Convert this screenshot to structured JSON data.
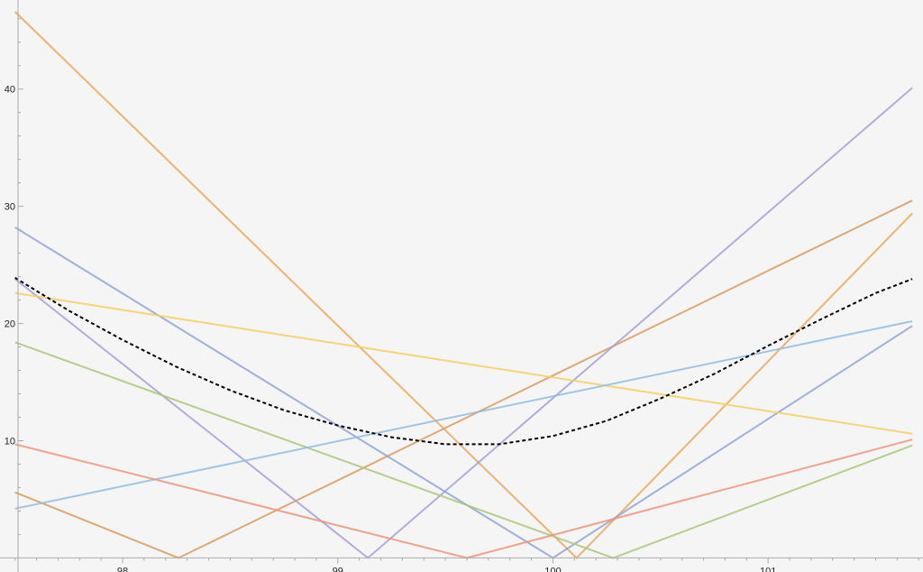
{
  "chart_data": {
    "type": "line",
    "title": "",
    "xlabel": "",
    "ylabel": "",
    "xlim": [
      97.43,
      101.72
    ],
    "ylim": [
      -1.2,
      47.6
    ],
    "x_ticks": [
      {
        "value": 98,
        "label": "98"
      },
      {
        "value": 99,
        "label": "99"
      },
      {
        "value": 100,
        "label": "100"
      },
      {
        "value": 101,
        "label": "101"
      }
    ],
    "y_ticks": [
      {
        "value": 10,
        "label": "10"
      },
      {
        "value": 20,
        "label": "20"
      },
      {
        "value": 30,
        "label": "30"
      },
      {
        "value": 40,
        "label": "40"
      }
    ],
    "grid": false,
    "series": [
      {
        "color": "#e8a85a",
        "style": "solid",
        "points": [
          [
            97.5,
            46.6
          ],
          [
            100.11,
            0
          ],
          [
            101.67,
            29.4
          ]
        ]
      },
      {
        "color": "#d99a5e",
        "style": "solid",
        "points": [
          [
            97.5,
            5.6
          ],
          [
            98.26,
            0
          ],
          [
            101.67,
            30.5
          ]
        ]
      },
      {
        "color": "#a6a0d4",
        "style": "solid",
        "points": [
          [
            97.5,
            23.8
          ],
          [
            99.14,
            0
          ],
          [
            101.67,
            40.1
          ]
        ]
      },
      {
        "color": "#8fa3d6",
        "style": "solid",
        "points": [
          [
            97.5,
            28.2
          ],
          [
            100,
            0
          ],
          [
            101.67,
            19.8
          ]
        ]
      },
      {
        "color": "#f7cf60",
        "style": "solid",
        "points": [
          [
            97.5,
            22.6
          ],
          [
            101.67,
            10.6
          ]
        ]
      },
      {
        "color": "#a8c87a",
        "style": "solid",
        "points": [
          [
            97.5,
            18.4
          ],
          [
            100.28,
            0
          ],
          [
            101.67,
            9.6
          ]
        ]
      },
      {
        "color": "#8fbce0",
        "style": "solid",
        "points": [
          [
            97.5,
            4.2
          ],
          [
            101.67,
            20.2
          ]
        ]
      },
      {
        "color": "#f0937a",
        "style": "solid",
        "points": [
          [
            97.5,
            9.7
          ],
          [
            99.6,
            0
          ],
          [
            101.67,
            10.1
          ]
        ]
      },
      {
        "color": "#000000",
        "style": "dashed",
        "points": [
          [
            97.5,
            23.9
          ],
          [
            97.75,
            21.1
          ],
          [
            98.0,
            18.6
          ],
          [
            98.25,
            16.3
          ],
          [
            98.5,
            14.3
          ],
          [
            98.75,
            12.6
          ],
          [
            99.0,
            11.3
          ],
          [
            99.25,
            10.3
          ],
          [
            99.5,
            9.7
          ],
          [
            99.75,
            9.7
          ],
          [
            100.0,
            10.4
          ],
          [
            100.25,
            11.7
          ],
          [
            100.5,
            13.6
          ],
          [
            100.75,
            15.7
          ],
          [
            101.0,
            18.1
          ],
          [
            101.25,
            20.4
          ],
          [
            101.5,
            22.6
          ],
          [
            101.67,
            23.8
          ]
        ]
      }
    ]
  }
}
